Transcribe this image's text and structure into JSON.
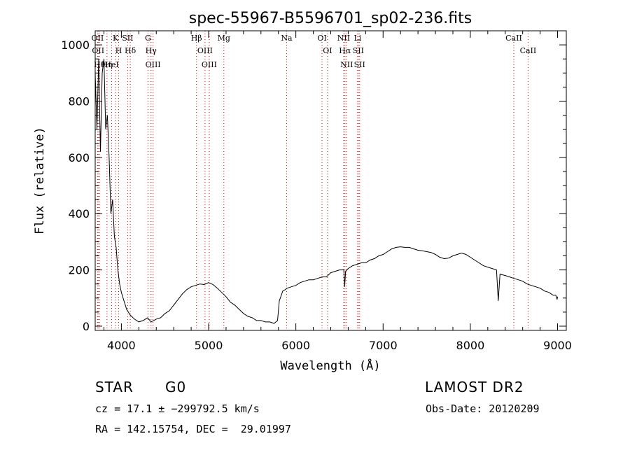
{
  "chart_data": {
    "type": "line",
    "title": "spec-55967-B5596701_sp02-236.fits",
    "xlabel": "Wavelength (Å)",
    "ylabel": "Flux (relative)",
    "xlim": [
      3700,
      9100
    ],
    "ylim": [
      -15,
      1050
    ],
    "x_ticks": [
      4000,
      5000,
      6000,
      7000,
      8000,
      9000
    ],
    "y_ticks": [
      0,
      200,
      400,
      600,
      800,
      1000
    ],
    "grid": false,
    "series": [
      {
        "x": [
          3700,
          3720,
          3740,
          3760,
          3780,
          3800,
          3820,
          3840,
          3860,
          3880,
          3900,
          3920,
          3940,
          3960,
          3980,
          4000,
          4030,
          4060,
          4100,
          4150,
          4200,
          4250,
          4300,
          4340,
          4400,
          4450,
          4500,
          4550,
          4600,
          4650,
          4700,
          4750,
          4800,
          4850,
          4900,
          4950,
          5000,
          5050,
          5100,
          5150,
          5200,
          5250,
          5300,
          5350,
          5400,
          5450,
          5500,
          5550,
          5600,
          5650,
          5700,
          5750,
          5790,
          5810,
          5850,
          5880,
          5900,
          5950,
          6000,
          6050,
          6100,
          6150,
          6200,
          6250,
          6300,
          6350,
          6400,
          6450,
          6500,
          6550,
          6560,
          6570,
          6600,
          6650,
          6700,
          6750,
          6800,
          6850,
          6900,
          6950,
          7000,
          7050,
          7100,
          7150,
          7200,
          7250,
          7300,
          7350,
          7400,
          7450,
          7500,
          7550,
          7600,
          7650,
          7700,
          7750,
          7800,
          7850,
          7900,
          7950,
          8000,
          8050,
          8100,
          8150,
          8200,
          8250,
          8300,
          8320,
          8340,
          8400,
          8450,
          8500,
          8550,
          8600,
          8650,
          8700,
          8750,
          8800,
          8850,
          8900,
          8950,
          8980,
          8995,
          9000
        ],
        "y": [
          900,
          700,
          950,
          620,
          900,
          950,
          700,
          750,
          600,
          400,
          450,
          320,
          280,
          200,
          150,
          120,
          90,
          60,
          40,
          25,
          15,
          20,
          30,
          15,
          25,
          30,
          45,
          55,
          75,
          95,
          115,
          130,
          140,
          145,
          150,
          148,
          155,
          148,
          135,
          120,
          105,
          85,
          75,
          60,
          45,
          35,
          30,
          20,
          20,
          15,
          15,
          10,
          20,
          90,
          125,
          130,
          135,
          140,
          145,
          155,
          160,
          165,
          165,
          170,
          175,
          175,
          190,
          195,
          200,
          200,
          140,
          195,
          205,
          215,
          220,
          225,
          225,
          235,
          240,
          250,
          255,
          265,
          275,
          280,
          282,
          280,
          280,
          275,
          270,
          268,
          265,
          262,
          255,
          245,
          240,
          242,
          250,
          255,
          260,
          255,
          245,
          235,
          225,
          215,
          210,
          205,
          200,
          90,
          185,
          180,
          175,
          170,
          165,
          160,
          150,
          145,
          140,
          135,
          125,
          120,
          110,
          110,
          95,
          105
        ]
      }
    ],
    "lines": [
      {
        "label": "OII",
        "x": 3727
      },
      {
        "label": "OII",
        "x": 3734
      },
      {
        "label": "Hθ",
        "x": 3750
      },
      {
        "label": "Hη",
        "x": 3835
      },
      {
        "label": "HeI",
        "x": 3889
      },
      {
        "label": "K",
        "x": 3934
      },
      {
        "label": "SII",
        "x": 4072
      },
      {
        "label": "H",
        "x": 3969
      },
      {
        "label": "Hδ",
        "x": 4102
      },
      {
        "label": "G",
        "x": 4305
      },
      {
        "label": "Hγ",
        "x": 4340
      },
      {
        "label": "OIII",
        "x": 4363
      },
      {
        "label": "Hβ",
        "x": 4861
      },
      {
        "label": "OIII",
        "x": 4959
      },
      {
        "label": "OIII",
        "x": 5007
      },
      {
        "label": "Mg",
        "x": 5175
      },
      {
        "label": "Na",
        "x": 5894
      },
      {
        "label": "OI",
        "x": 6300
      },
      {
        "label": "OI",
        "x": 6363
      },
      {
        "label": "NII",
        "x": 6548
      },
      {
        "label": "Hα",
        "x": 6563
      },
      {
        "label": "NII",
        "x": 6583
      },
      {
        "label": "Li",
        "x": 6708
      },
      {
        "label": "SII",
        "x": 6716
      },
      {
        "label": "SII",
        "x": 6731
      },
      {
        "label": "CaII",
        "x": 8498
      },
      {
        "label": "CaII",
        "x": 8662
      }
    ]
  },
  "info": {
    "class_label": "STAR",
    "subclass": "G0",
    "survey": "LAMOST DR2",
    "cz_text": "cz = 17.1 ± −299792.5 km/s",
    "obs_date": "Obs-Date: 20120209",
    "radec": "RA = 142.15754, DEC =  29.01997"
  }
}
